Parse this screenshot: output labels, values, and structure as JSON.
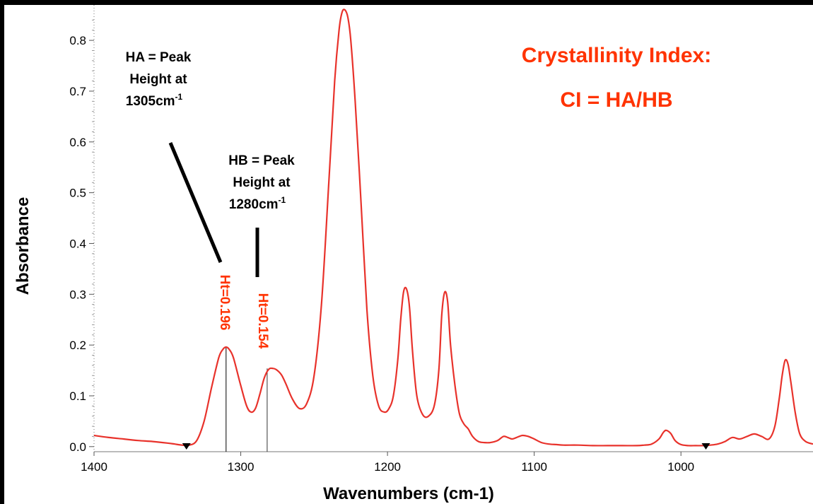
{
  "chart_data": {
    "type": "line",
    "title": "",
    "xlabel": "Wavenumbers (cm-1)",
    "ylabel": "Absorbance",
    "xlim": [
      1400,
      910
    ],
    "ylim": [
      -0.01,
      0.86
    ],
    "x_reversed": true,
    "x_ticks": [
      {
        "value": 1400,
        "label": "1400"
      },
      {
        "value": 1300,
        "label": "1300"
      },
      {
        "value": 1200,
        "label": "1200"
      },
      {
        "value": 1100,
        "label": "1100"
      },
      {
        "value": 1000,
        "label": "1000"
      }
    ],
    "y_ticks": [
      {
        "value": 0.0,
        "label": "0.0"
      },
      {
        "value": 0.1,
        "label": "0.1"
      },
      {
        "value": 0.2,
        "label": "0.2"
      },
      {
        "value": 0.3,
        "label": "0.3"
      },
      {
        "value": 0.4,
        "label": "0.4"
      },
      {
        "value": 0.5,
        "label": "0.5"
      },
      {
        "value": 0.6,
        "label": "0.6"
      },
      {
        "value": 0.7,
        "label": "0.7"
      },
      {
        "value": 0.8,
        "label": "0.8"
      }
    ],
    "grid": false,
    "colors": {
      "spectrum": "#e8322b",
      "annotation_red": "#ff3300",
      "annotation_black": "#000000"
    },
    "series": [
      {
        "x": [
          1400,
          1390,
          1380,
          1370,
          1360,
          1350,
          1345,
          1340,
          1335,
          1330,
          1325,
          1320,
          1315,
          1312,
          1310,
          1308,
          1305,
          1300,
          1296,
          1293,
          1290,
          1287,
          1284,
          1281,
          1278,
          1275,
          1272,
          1269,
          1265,
          1260,
          1255,
          1250,
          1245,
          1240,
          1236,
          1233,
          1231,
          1229,
          1227,
          1225,
          1222,
          1218,
          1214,
          1210,
          1206,
          1202,
          1199,
          1196,
          1193,
          1191,
          1189,
          1187,
          1185,
          1183,
          1180,
          1176,
          1172,
          1168,
          1165,
          1163,
          1161,
          1159,
          1157,
          1154,
          1151,
          1148,
          1145,
          1142,
          1138,
          1134,
          1130,
          1125,
          1121,
          1118,
          1115,
          1112,
          1108,
          1104,
          1100,
          1095,
          1090,
          1085,
          1080,
          1070,
          1060,
          1050,
          1040,
          1030,
          1025,
          1020,
          1015,
          1012,
          1010,
          1007,
          1004,
          1000,
          995,
          990,
          985,
          980,
          975,
          970,
          965,
          960,
          955,
          950,
          945,
          940,
          936,
          933,
          931,
          929,
          927,
          925,
          922,
          919,
          915,
          910
        ],
        "y": [
          0.022,
          0.018,
          0.015,
          0.012,
          0.01,
          0.007,
          0.005,
          0.003,
          0.003,
          0.012,
          0.05,
          0.115,
          0.175,
          0.192,
          0.196,
          0.192,
          0.175,
          0.12,
          0.08,
          0.068,
          0.075,
          0.103,
          0.135,
          0.152,
          0.154,
          0.15,
          0.14,
          0.122,
          0.095,
          0.075,
          0.085,
          0.14,
          0.28,
          0.52,
          0.72,
          0.82,
          0.855,
          0.86,
          0.845,
          0.8,
          0.68,
          0.48,
          0.27,
          0.14,
          0.08,
          0.068,
          0.075,
          0.1,
          0.17,
          0.25,
          0.305,
          0.31,
          0.275,
          0.19,
          0.1,
          0.063,
          0.06,
          0.082,
          0.15,
          0.26,
          0.304,
          0.285,
          0.2,
          0.12,
          0.065,
          0.045,
          0.035,
          0.02,
          0.01,
          0.008,
          0.008,
          0.012,
          0.02,
          0.018,
          0.015,
          0.018,
          0.022,
          0.02,
          0.015,
          0.008,
          0.005,
          0.004,
          0.003,
          0.003,
          0.002,
          0.002,
          0.002,
          0.002,
          0.003,
          0.005,
          0.015,
          0.028,
          0.032,
          0.026,
          0.012,
          0.004,
          0.002,
          0.002,
          0.002,
          0.003,
          0.005,
          0.01,
          0.018,
          0.015,
          0.02,
          0.025,
          0.02,
          0.015,
          0.04,
          0.095,
          0.14,
          0.17,
          0.162,
          0.125,
          0.065,
          0.025,
          0.01,
          0.005
        ]
      }
    ],
    "annotations": {
      "ha_lines": [
        "HA = Peak",
        "Height at",
        "1305cm"
      ],
      "hb_lines": [
        "HB = Peak",
        "Height at",
        "1280cm"
      ],
      "superscript": "-1",
      "ht_a": "Ht=0.196",
      "ht_b": "Ht=0.154",
      "ci_title": "Crystallinity Index:",
      "ci_formula": "CI = HA/HB",
      "peak_a": {
        "x": 1310,
        "y": 0.196
      },
      "peak_b": {
        "x": 1282,
        "y": 0.154
      },
      "baseline_markers_x": [
        1337,
        983
      ]
    }
  }
}
